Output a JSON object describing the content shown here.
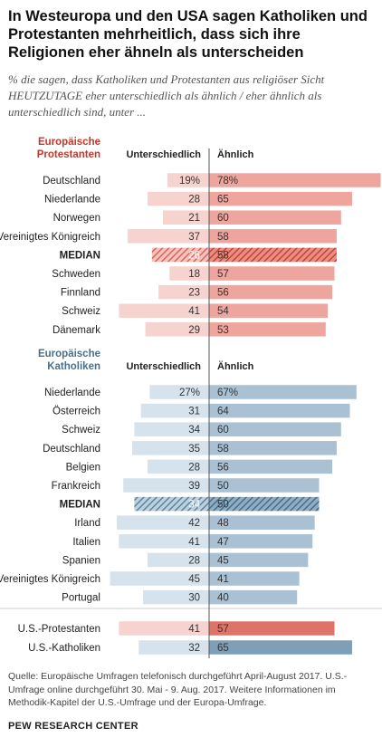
{
  "title": "In Westeuropa und den USA sagen Katholiken und Protestanten mehrheitlich, dass sich ihre Religionen eher ähneln als unterscheiden",
  "subtitle": "% die sagen, dass Katholiken und Protestanten aus religiöser Sicht HEUTZUTAGE eher unterschiedlich als ähnlich / eher ähnlich als unterschiedlich sind, unter ...",
  "source": "Quelle: Europäische Umfragen telefonisch durchgeführt April-August 2017. U.S.-Umfrage online durchgeführt 30. Mai - 9. Aug. 2017. Weitere Informationen im Methodik-Kapitel der U.S.-Umfrage und der Europa-Umfrage.",
  "brand": "PEW RESEARCH CENTER",
  "colors": {
    "protestant_left": "#f6d3cf",
    "protestant_right": "#eda59e",
    "protestant_median": "#d9574b",
    "catholic_left": "#d6e2ec",
    "catholic_right": "#a9c1d3",
    "catholic_median": "#4f7a99",
    "us_prot_right": "#de7468",
    "us_cath_right": "#7f9fb8",
    "prot_header": "#c0392b",
    "cath_header": "#4a6f8a"
  },
  "chart_data": {
    "type": "bar",
    "subtype": "diverging",
    "left_label": "Unterschiedlich",
    "right_label": "Ähnlich",
    "groups": [
      {
        "header": [
          "Europäische",
          "Protestanten"
        ],
        "color_key": "protestant",
        "categories": [
          "Deutschland",
          "Niederlande",
          "Norwegen",
          "Vereinigtes Königreich",
          "MEDIAN",
          "Schweden",
          "Finnland",
          "Schweiz",
          "Dänemark"
        ],
        "left_values": [
          19,
          28,
          21,
          37,
          26,
          18,
          23,
          41,
          29
        ],
        "right_values": [
          78,
          65,
          60,
          58,
          58,
          57,
          56,
          54,
          53
        ],
        "left_labels": [
          "19%",
          "28",
          "21",
          "37",
          "26",
          "18",
          "23",
          "41",
          "29"
        ],
        "right_labels": [
          "78%",
          "65",
          "60",
          "58",
          "58",
          "57",
          "56",
          "54",
          "53"
        ],
        "median_index": 4
      },
      {
        "header": [
          "Europäische",
          "Katholiken"
        ],
        "color_key": "catholic",
        "categories": [
          "Niederlande",
          "Österreich",
          "Schweiz",
          "Deutschland",
          "Belgien",
          "Frankreich",
          "MEDIAN",
          "Irland",
          "Italien",
          "Spanien",
          "Vereinigtes Königreich",
          "Portugal"
        ],
        "left_values": [
          27,
          31,
          34,
          35,
          28,
          39,
          34,
          42,
          41,
          28,
          45,
          30
        ],
        "right_values": [
          67,
          64,
          60,
          58,
          56,
          50,
          50,
          48,
          47,
          45,
          41,
          40
        ],
        "left_labels": [
          "27%",
          "31",
          "34",
          "35",
          "28",
          "39",
          "34",
          "42",
          "41",
          "28",
          "45",
          "30"
        ],
        "right_labels": [
          "67%",
          "64",
          "60",
          "58",
          "56",
          "50",
          "50",
          "48",
          "47",
          "45",
          "41",
          "40"
        ],
        "median_index": 6
      }
    ],
    "us_rows": [
      {
        "category": "U.S.-Protestanten",
        "left": 41,
        "right": 57,
        "color_key": "us_prot"
      },
      {
        "category": "U.S.-Katholiken",
        "left": 32,
        "right": 65,
        "color_key": "us_cath"
      }
    ]
  }
}
